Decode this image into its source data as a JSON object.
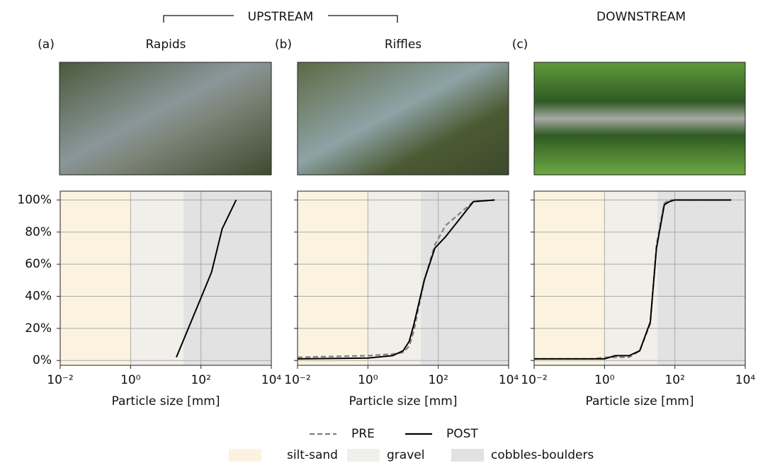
{
  "header": {
    "upstream": "UPSTREAM",
    "downstream": "DOWNSTREAM"
  },
  "size_classes": [
    {
      "name": "silt-sand",
      "color": "#fbf3df",
      "range": [
        0.01,
        1
      ]
    },
    {
      "name": "gravel",
      "color": "#f1efea",
      "range": [
        1,
        32
      ]
    },
    {
      "name": "cobbles-boulders",
      "color": "#e2e2e2",
      "range": [
        32,
        10000
      ]
    }
  ],
  "chart_data": [
    {
      "type": "line",
      "panel": "(a)",
      "title": "Rapids",
      "xlabel": "Particle size [mm]",
      "log_x": true,
      "grid": true,
      "x": [
        20,
        100,
        200,
        400,
        1000
      ],
      "series": [
        {
          "name": "POST",
          "color": "#000000",
          "dash": false,
          "values": [
            2,
            39,
            55,
            82,
            100
          ]
        }
      ],
      "xlim": [
        0.01,
        10000
      ],
      "xticks": [
        {
          "value": 0.01,
          "label": "10⁻²"
        },
        {
          "value": 1,
          "label": "10⁰"
        },
        {
          "value": 100,
          "label": "10²"
        },
        {
          "value": 10000,
          "label": "10⁴"
        }
      ],
      "ylim": [
        -3,
        105.5
      ],
      "yticks": [
        {
          "value": 0,
          "label": "0%"
        },
        {
          "value": 20,
          "label": "20%"
        },
        {
          "value": 40,
          "label": "40%"
        },
        {
          "value": 60,
          "label": "60%"
        },
        {
          "value": 80,
          "label": "80%"
        },
        {
          "value": 100,
          "label": "100%"
        }
      ]
    },
    {
      "type": "line",
      "panel": "(b)",
      "title": "Riffles",
      "xlabel": "Particle size [mm]",
      "log_x": true,
      "grid": true,
      "x": [
        0.01,
        1,
        5,
        10,
        15,
        20,
        40,
        80,
        160,
        1000,
        4000
      ],
      "series": [
        {
          "name": "PRE",
          "color": "#808080",
          "dash": true,
          "values": [
            2,
            3,
            4,
            5,
            9,
            18,
            50,
            72,
            84,
            99,
            100
          ]
        },
        {
          "name": "POST",
          "color": "#000000",
          "dash": false,
          "values": [
            1,
            1.5,
            3,
            6,
            12,
            22,
            50,
            70,
            77,
            99,
            100
          ]
        }
      ],
      "xlim": [
        0.01,
        10000
      ],
      "xticks": [
        {
          "value": 0.01,
          "label": "10⁻²"
        },
        {
          "value": 1,
          "label": "10⁰"
        },
        {
          "value": 100,
          "label": "10²"
        },
        {
          "value": 10000,
          "label": "10⁴"
        }
      ],
      "ylim": [
        -3,
        105.5
      ],
      "yticks": [
        0,
        20,
        40,
        60,
        80,
        100
      ]
    },
    {
      "type": "line",
      "panel": "(c)",
      "xlabel": "Particle size [mm]",
      "log_x": true,
      "grid": true,
      "x": [
        0.01,
        0.5,
        1,
        2,
        5,
        10,
        20,
        30,
        50,
        70,
        100,
        4000
      ],
      "series": [
        {
          "name": "PRE",
          "color": "#808080",
          "dash": true,
          "values": [
            1,
            1,
            2,
            2,
            2,
            6,
            23,
            72,
            98,
            100,
            100,
            100
          ]
        },
        {
          "name": "POST",
          "color": "#000000",
          "dash": false,
          "values": [
            1,
            1,
            1,
            3,
            3,
            6,
            24,
            70,
            97,
            99,
            100,
            100
          ]
        }
      ],
      "xlim": [
        0.01,
        10000
      ],
      "xticks": [
        {
          "value": 0.01,
          "label": "10⁻²"
        },
        {
          "value": 1,
          "label": "10⁰"
        },
        {
          "value": 100,
          "label": "10²"
        },
        {
          "value": 10000,
          "label": "10⁴"
        }
      ],
      "ylim": [
        -3,
        105.5
      ],
      "yticks": [
        0,
        20,
        40,
        60,
        80,
        100
      ]
    }
  ]
}
